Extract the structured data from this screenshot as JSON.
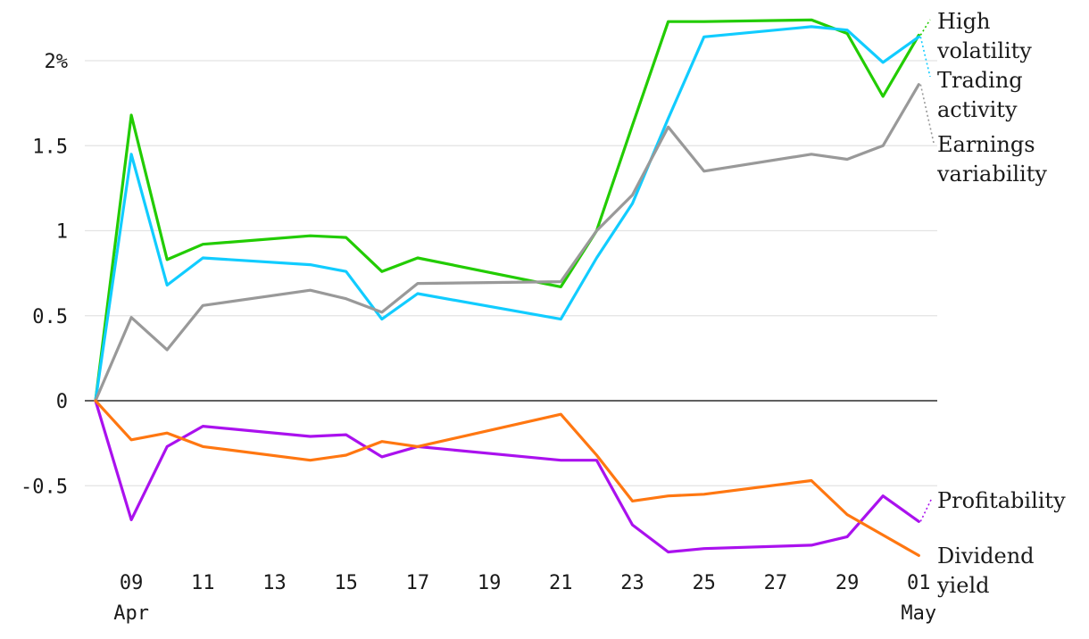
{
  "chart_data": {
    "type": "line",
    "title": "",
    "xlabel": "",
    "ylabel": "",
    "ylim": [
      -0.95,
      2.3
    ],
    "y_ticks": [
      {
        "value": 2,
        "label": "2%"
      },
      {
        "value": 1.5,
        "label": "1.5"
      },
      {
        "value": 1,
        "label": "1"
      },
      {
        "value": 0.5,
        "label": "0.5"
      },
      {
        "value": 0,
        "label": "0"
      },
      {
        "value": -0.5,
        "label": "-0.5"
      }
    ],
    "x": [
      "2024-04-08",
      "2024-04-09",
      "2024-04-10",
      "2024-04-11",
      "2024-04-14",
      "2024-04-15",
      "2024-04-16",
      "2024-04-17",
      "2024-04-21",
      "2024-04-22",
      "2024-04-23",
      "2024-04-24",
      "2024-04-25",
      "2024-04-28",
      "2024-04-29",
      "2024-04-30",
      "2024-05-01"
    ],
    "x_ticks": [
      {
        "date": "2024-04-09",
        "label": "09",
        "sublabel": "Apr"
      },
      {
        "date": "2024-04-11",
        "label": "11",
        "sublabel": ""
      },
      {
        "date": "2024-04-13",
        "label": "13",
        "sublabel": ""
      },
      {
        "date": "2024-04-15",
        "label": "15",
        "sublabel": ""
      },
      {
        "date": "2024-04-17",
        "label": "17",
        "sublabel": ""
      },
      {
        "date": "2024-04-19",
        "label": "19",
        "sublabel": ""
      },
      {
        "date": "2024-04-21",
        "label": "21",
        "sublabel": ""
      },
      {
        "date": "2024-04-23",
        "label": "23",
        "sublabel": ""
      },
      {
        "date": "2024-04-25",
        "label": "25",
        "sublabel": ""
      },
      {
        "date": "2024-04-27",
        "label": "27",
        "sublabel": ""
      },
      {
        "date": "2024-04-29",
        "label": "29",
        "sublabel": ""
      },
      {
        "date": "2024-05-01",
        "label": "01",
        "sublabel": "May"
      }
    ],
    "grid": true,
    "legend_placement": "right, end-of-line labels",
    "series": [
      {
        "name": "High volatility",
        "label_lines": [
          "High",
          "volatility"
        ],
        "color": "#22cc00",
        "values": [
          0,
          1.68,
          0.83,
          0.92,
          0.97,
          0.96,
          0.76,
          0.84,
          0.67,
          1.0,
          1.62,
          2.23,
          2.23,
          2.24,
          2.16,
          1.79,
          2.15
        ]
      },
      {
        "name": "Trading activity",
        "label_lines": [
          "Trading",
          "activity"
        ],
        "color": "#11ccff",
        "values": [
          0,
          1.45,
          0.68,
          0.84,
          0.8,
          0.76,
          0.48,
          0.63,
          0.48,
          0.84,
          1.16,
          1.66,
          2.14,
          2.2,
          2.18,
          1.99,
          2.14
        ]
      },
      {
        "name": "Earnings variability",
        "label_lines": [
          "Earnings",
          "variability"
        ],
        "color": "#999999",
        "values": [
          0,
          0.49,
          0.3,
          0.56,
          0.65,
          0.6,
          0.52,
          0.69,
          0.7,
          1.0,
          1.21,
          1.61,
          1.35,
          1.45,
          1.42,
          1.5,
          1.86
        ]
      },
      {
        "name": "Profitability",
        "label_lines": [
          "Profitability"
        ],
        "color": "#aa11ee",
        "values": [
          0,
          -0.7,
          -0.27,
          -0.15,
          -0.21,
          -0.2,
          -0.33,
          -0.27,
          -0.35,
          -0.35,
          -0.73,
          -0.89,
          -0.87,
          -0.85,
          -0.8,
          -0.56,
          -0.71
        ]
      },
      {
        "name": "Dividend yield",
        "label_lines": [
          "Dividend",
          "yield"
        ],
        "color": "#ff7711",
        "values": [
          0,
          -0.23,
          -0.19,
          -0.27,
          -0.35,
          -0.32,
          -0.24,
          -0.27,
          -0.08,
          -0.32,
          -0.59,
          -0.56,
          -0.55,
          -0.47,
          -0.67,
          -0.79,
          -0.91
        ]
      }
    ]
  }
}
